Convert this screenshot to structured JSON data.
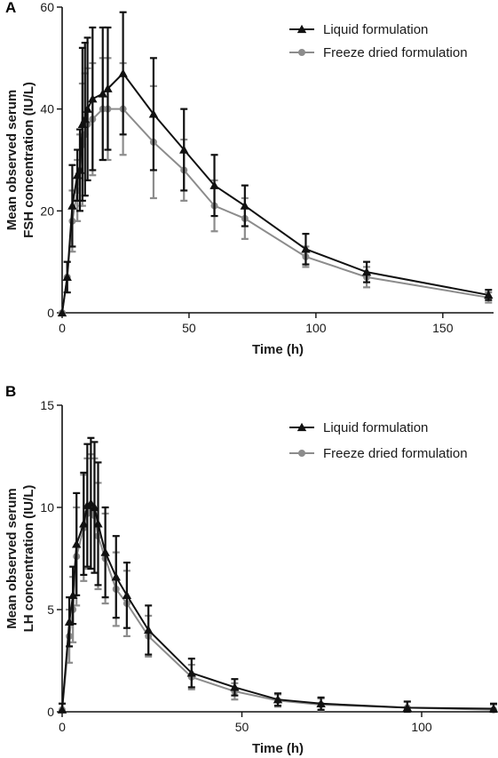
{
  "chart_data": [
    {
      "panel": "A",
      "type": "line",
      "xlabel": "Time (h)",
      "ylabel": [
        "Mean observed serum",
        "FSH concentration (IU/L)"
      ],
      "xlim": [
        0,
        170
      ],
      "ylim": [
        0,
        60
      ],
      "xticks": [
        0,
        50,
        100,
        150
      ],
      "yticks": [
        0,
        20,
        40,
        60
      ],
      "legend_position": "top-right",
      "series": [
        {
          "name": "Liquid formulation",
          "color": "#111111",
          "marker": "triangle",
          "points": [
            {
              "x": 0,
              "y": 0,
              "err": 0
            },
            {
              "x": 2,
              "y": 7,
              "err": 3
            },
            {
              "x": 4,
              "y": 21,
              "err": 8
            },
            {
              "x": 6,
              "y": 27,
              "err": 5
            },
            {
              "x": 7,
              "y": 28,
              "err": 8
            },
            {
              "x": 8,
              "y": 37,
              "err": 15
            },
            {
              "x": 9,
              "y": 38,
              "err": 15
            },
            {
              "x": 10,
              "y": 40,
              "err": 14
            },
            {
              "x": 12,
              "y": 42,
              "err": 14
            },
            {
              "x": 16,
              "y": 43,
              "err": 13
            },
            {
              "x": 18,
              "y": 44,
              "err": 12
            },
            {
              "x": 24,
              "y": 47,
              "err": 12
            },
            {
              "x": 36,
              "y": 39,
              "err": 11
            },
            {
              "x": 48,
              "y": 32,
              "err": 8
            },
            {
              "x": 60,
              "y": 25,
              "err": 6
            },
            {
              "x": 72,
              "y": 21,
              "err": 4
            },
            {
              "x": 96,
              "y": 12.5,
              "err": 3
            },
            {
              "x": 120,
              "y": 8,
              "err": 2
            },
            {
              "x": 168,
              "y": 3.5,
              "err": 1
            }
          ]
        },
        {
          "name": "Freeze dried formulation",
          "color": "#8c8c8c",
          "marker": "circle",
          "points": [
            {
              "x": 0,
              "y": 0,
              "err": 0
            },
            {
              "x": 2,
              "y": 7,
              "err": 3
            },
            {
              "x": 4,
              "y": 18,
              "err": 6
            },
            {
              "x": 6,
              "y": 24,
              "err": 6
            },
            {
              "x": 7,
              "y": 28,
              "err": 7
            },
            {
              "x": 8,
              "y": 33,
              "err": 12
            },
            {
              "x": 9,
              "y": 35,
              "err": 12
            },
            {
              "x": 10,
              "y": 37,
              "err": 11
            },
            {
              "x": 12,
              "y": 38,
              "err": 11
            },
            {
              "x": 16,
              "y": 40,
              "err": 10
            },
            {
              "x": 18,
              "y": 40,
              "err": 10
            },
            {
              "x": 24,
              "y": 40,
              "err": 9
            },
            {
              "x": 36,
              "y": 33.5,
              "err": 11
            },
            {
              "x": 48,
              "y": 28,
              "err": 6
            },
            {
              "x": 60,
              "y": 21,
              "err": 5
            },
            {
              "x": 72,
              "y": 18.5,
              "err": 4
            },
            {
              "x": 96,
              "y": 11,
              "err": 2
            },
            {
              "x": 120,
              "y": 7,
              "err": 2
            },
            {
              "x": 168,
              "y": 3,
              "err": 1
            }
          ]
        }
      ]
    },
    {
      "panel": "B",
      "type": "line",
      "xlabel": "Time (h)",
      "ylabel": [
        "Mean observed serum",
        "LH concentration (IU/L)"
      ],
      "xlim": [
        0,
        120
      ],
      "ylim": [
        0,
        15
      ],
      "xticks": [
        0,
        50,
        100
      ],
      "yticks": [
        0,
        5,
        10,
        15
      ],
      "legend_position": "top-right",
      "series": [
        {
          "name": "Liquid formulation",
          "color": "#111111",
          "marker": "triangle",
          "points": [
            {
              "x": 0,
              "y": 0.1,
              "err": 0.3
            },
            {
              "x": 2,
              "y": 4.4,
              "err": 1.2
            },
            {
              "x": 3,
              "y": 5.7,
              "err": 1.4
            },
            {
              "x": 4,
              "y": 8.2,
              "err": 2.5
            },
            {
              "x": 6,
              "y": 9.2,
              "err": 2.5
            },
            {
              "x": 7,
              "y": 10.1,
              "err": 3
            },
            {
              "x": 8,
              "y": 10.2,
              "err": 3.2
            },
            {
              "x": 9,
              "y": 10.0,
              "err": 3.2
            },
            {
              "x": 10,
              "y": 9.2,
              "err": 3
            },
            {
              "x": 12,
              "y": 7.8,
              "err": 2.2
            },
            {
              "x": 15,
              "y": 6.6,
              "err": 2
            },
            {
              "x": 18,
              "y": 5.7,
              "err": 1.6
            },
            {
              "x": 24,
              "y": 4.0,
              "err": 1.2
            },
            {
              "x": 36,
              "y": 1.9,
              "err": 0.7
            },
            {
              "x": 48,
              "y": 1.2,
              "err": 0.4
            },
            {
              "x": 60,
              "y": 0.6,
              "err": 0.3
            },
            {
              "x": 72,
              "y": 0.4,
              "err": 0.3
            },
            {
              "x": 96,
              "y": 0.2,
              "err": 0.3
            },
            {
              "x": 120,
              "y": 0.15,
              "err": 0.25
            }
          ]
        },
        {
          "name": "Freeze dried formulation",
          "color": "#8c8c8c",
          "marker": "circle",
          "points": [
            {
              "x": 0,
              "y": 0.1,
              "err": 0.3
            },
            {
              "x": 2,
              "y": 3.7,
              "err": 1.3
            },
            {
              "x": 3,
              "y": 5.0,
              "err": 1.6
            },
            {
              "x": 4,
              "y": 7.6,
              "err": 2.4
            },
            {
              "x": 6,
              "y": 9.0,
              "err": 2.6
            },
            {
              "x": 7,
              "y": 9.7,
              "err": 2.7
            },
            {
              "x": 8,
              "y": 9.8,
              "err": 2.8
            },
            {
              "x": 9,
              "y": 9.6,
              "err": 2.8
            },
            {
              "x": 10,
              "y": 8.6,
              "err": 2.6
            },
            {
              "x": 12,
              "y": 7.5,
              "err": 2.2
            },
            {
              "x": 15,
              "y": 6.0,
              "err": 1.8
            },
            {
              "x": 18,
              "y": 5.3,
              "err": 1.6
            },
            {
              "x": 24,
              "y": 3.7,
              "err": 1.0
            },
            {
              "x": 36,
              "y": 1.7,
              "err": 0.6
            },
            {
              "x": 48,
              "y": 1.0,
              "err": 0.4
            },
            {
              "x": 60,
              "y": 0.55,
              "err": 0.3
            },
            {
              "x": 72,
              "y": 0.35,
              "err": 0.3
            },
            {
              "x": 96,
              "y": 0.2,
              "err": 0.3
            },
            {
              "x": 120,
              "y": 0.1,
              "err": 0.25
            }
          ]
        }
      ]
    }
  ]
}
